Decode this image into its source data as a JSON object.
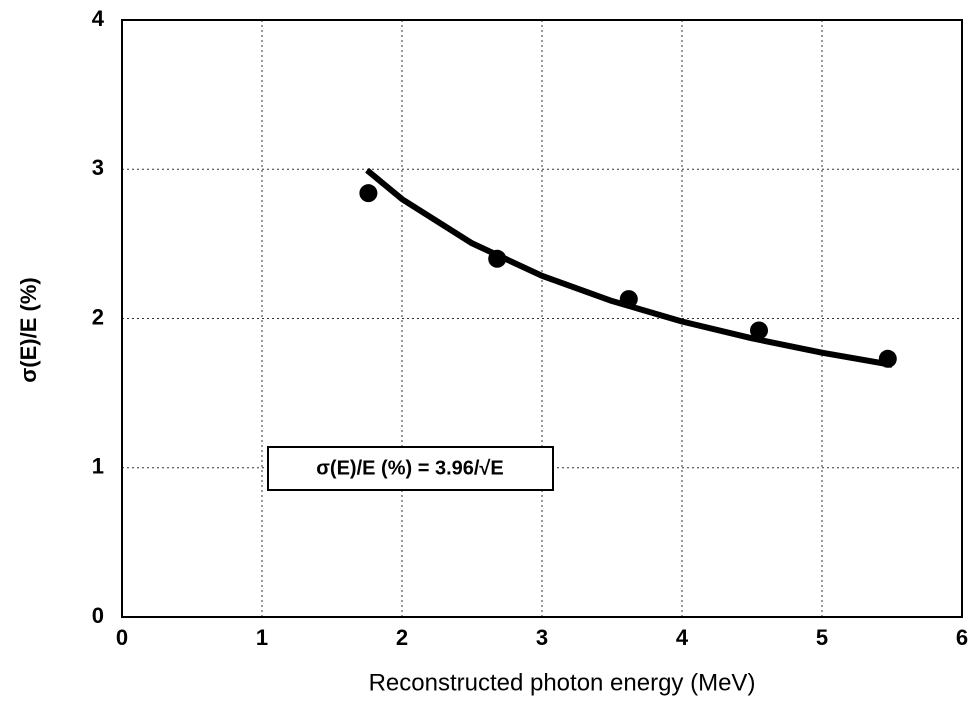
{
  "chart_data": {
    "type": "scatter",
    "xlabel": "Reconstructed photon energy (MeV)",
    "ylabel": "σ(E)/E (%)",
    "xlim": [
      0,
      6
    ],
    "xticks": [
      0,
      1,
      2,
      3,
      4,
      5,
      6
    ],
    "ylim": [
      0,
      4
    ],
    "yticks": [
      0,
      1,
      2,
      3,
      4
    ],
    "grid": true,
    "series": [
      {
        "color": "#000000",
        "mode": "markers",
        "x": [
          1.76,
          2.68,
          3.62,
          4.55,
          5.47
        ],
        "values": [
          2.84,
          2.4,
          2.13,
          1.92,
          1.73
        ]
      },
      {
        "name": "σ(E)/E (%) = 3.96/√E",
        "color": "#000000",
        "mode": "lines",
        "x": [
          1.75,
          2,
          2.5,
          3,
          3.5,
          4,
          4.5,
          5,
          5.5
        ],
        "values": [
          2.994,
          2.8,
          2.504,
          2.286,
          2.117,
          1.98,
          1.867,
          1.771,
          1.689
        ]
      }
    ]
  }
}
